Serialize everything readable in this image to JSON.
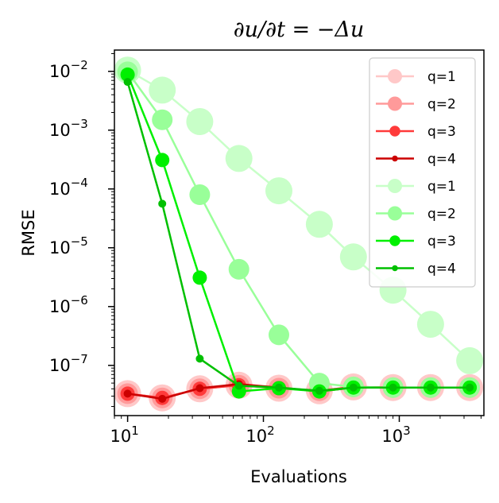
{
  "chart_data": {
    "type": "line",
    "title": "∂u/∂t = −Δu",
    "xlabel": "Evaluations",
    "ylabel": "RMSE",
    "xscale": "log",
    "yscale": "log",
    "xlim": [
      8,
      4200
    ],
    "ylim": [
      1.4e-08,
      0.023
    ],
    "x_ticks": [
      {
        "value": 10,
        "base": "10",
        "exp": "1"
      },
      {
        "value": 100,
        "base": "10",
        "exp": "2"
      },
      {
        "value": 1000,
        "base": "10",
        "exp": "3"
      }
    ],
    "y_ticks": [
      {
        "value": 1e-07,
        "base": "10",
        "exp": "−7"
      },
      {
        "value": 1e-06,
        "base": "10",
        "exp": "−6"
      },
      {
        "value": 1e-05,
        "base": "10",
        "exp": "−5"
      },
      {
        "value": 0.0001,
        "base": "10",
        "exp": "−4"
      },
      {
        "value": 0.001,
        "base": "10",
        "exp": "−3"
      },
      {
        "value": 0.01,
        "base": "10",
        "exp": "−2"
      }
    ],
    "legend_position": "top-right",
    "grid": false,
    "series": [
      {
        "name": "q=1",
        "color": "#ffc8c8",
        "marker_size": 17,
        "line_width": 2.5,
        "x": [
          10,
          18,
          34,
          66,
          130,
          258,
          460,
          900,
          1700,
          3300
        ],
        "y": [
          3.3e-08,
          2.8e-08,
          4e-08,
          4.6e-08,
          4.1e-08,
          3.7e-08,
          4.3e-08,
          4.2e-08,
          4.2e-08,
          4.2e-08
        ]
      },
      {
        "name": "q=2",
        "color": "#ff9a9a",
        "marker_size": 13,
        "line_width": 2.5,
        "x": [
          10,
          18,
          34,
          66,
          130,
          258,
          460,
          900,
          1700,
          3300
        ],
        "y": [
          3.3e-08,
          2.8e-08,
          4e-08,
          4.6e-08,
          4.1e-08,
          3.7e-08,
          4.3e-08,
          4.2e-08,
          4.2e-08,
          4.2e-08
        ]
      },
      {
        "name": "q=3",
        "color": "#ff3a3a",
        "marker_size": 9,
        "line_width": 2.5,
        "x": [
          10,
          18,
          34,
          66,
          130,
          258,
          460,
          900,
          1700,
          3300
        ],
        "y": [
          3.3e-08,
          2.8e-08,
          4e-08,
          4.6e-08,
          4.1e-08,
          3.7e-08,
          4.3e-08,
          4.2e-08,
          4.2e-08,
          4.2e-08
        ]
      },
      {
        "name": "q=4",
        "color": "#cc0000",
        "marker_size": 5,
        "line_width": 2.5,
        "x": [
          10,
          18,
          34,
          66,
          130,
          258,
          460,
          900,
          1700,
          3300
        ],
        "y": [
          3.3e-08,
          2.7e-08,
          4.1e-08,
          4.8e-08,
          4.2e-08,
          3.6e-08,
          4.2e-08,
          4.2e-08,
          4.2e-08,
          4.2e-08
        ]
      },
      {
        "name": "q=1",
        "color": "#c8ffc8",
        "marker_size": 17,
        "line_width": 2.5,
        "x": [
          10,
          18,
          34,
          66,
          130,
          258,
          460,
          900,
          1700,
          3300
        ],
        "y": [
          0.0105,
          0.0048,
          0.0014,
          0.00033,
          9.3e-05,
          2.5e-05,
          7e-06,
          1.9e-06,
          5e-07,
          1.2e-07
        ]
      },
      {
        "name": "q=2",
        "color": "#99ff99",
        "marker_size": 13,
        "line_width": 2.5,
        "x": [
          10,
          18,
          34,
          66,
          130,
          258,
          460,
          900,
          1700,
          3300
        ],
        "y": [
          0.0098,
          0.0015,
          8e-05,
          4.3e-06,
          3.3e-07,
          5e-08,
          4.3e-08,
          4.2e-08,
          4.2e-08,
          4.2e-08
        ]
      },
      {
        "name": "q=3",
        "color": "#00f000",
        "marker_size": 9,
        "line_width": 2.5,
        "x": [
          10,
          18,
          34,
          66,
          130,
          258,
          460,
          900,
          1700,
          3300
        ],
        "y": [
          0.0088,
          0.00031,
          3.1e-06,
          3.6e-08,
          4.1e-08,
          3.6e-08,
          4.2e-08,
          4.2e-08,
          4.2e-08,
          4.2e-08
        ]
      },
      {
        "name": "q=4",
        "color": "#00c000",
        "marker_size": 5,
        "line_width": 2.5,
        "x": [
          10,
          18,
          34,
          66,
          130,
          258,
          460,
          900,
          1700,
          3300
        ],
        "y": [
          0.0066,
          5.6e-05,
          1.3e-07,
          4.5e-08,
          4.2e-08,
          3.7e-08,
          4.2e-08,
          4.2e-08,
          4.2e-08,
          4.2e-08
        ]
      }
    ]
  }
}
